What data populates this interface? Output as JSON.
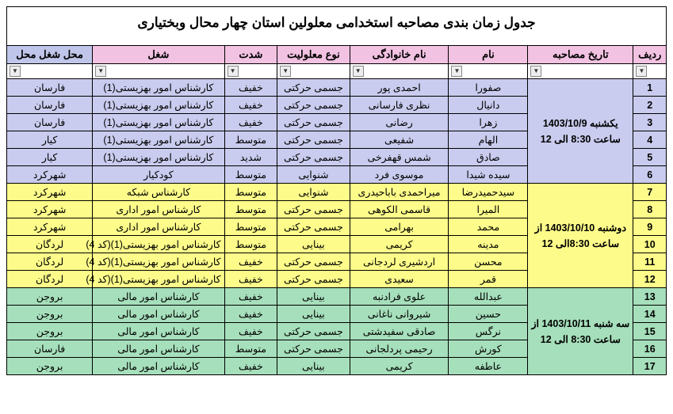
{
  "title": "جدول زمان بندی مصاحبه استخدامی معلولین  استان چهار محال وبختیاری",
  "headers": {
    "row": "ردیف",
    "date": "تاریخ مصاحبه",
    "name": "نام",
    "family": "نام خانوادگی",
    "type": "نوع معلولیت",
    "severity": "شدت",
    "job": "شغل",
    "location": "محل شغل محل"
  },
  "colors": {
    "hdr_pink": "#f2c2e2",
    "hdr_blue": "#c0c6ea",
    "grp_blue": "#c9ccee",
    "grp_yellow": "#fdfc8a",
    "grp_green": "#a6dfbb",
    "border": "#000000"
  },
  "groups": [
    {
      "cls": "grp-blue",
      "date": "یکشنبه 1403/10/9 ساعت 8:30 الی 12",
      "rows": [
        {
          "n": "1",
          "name": "صفورا",
          "family": "احمدی پور",
          "type": "جسمی حرکتی",
          "sev": "خفیف",
          "job": "کارشناس امور بهزیستی(1)",
          "loc": "فارسان"
        },
        {
          "n": "2",
          "name": "دانیال",
          "family": "نظری فارسانی",
          "type": "جسمی حرکتی",
          "sev": "خفیف",
          "job": "کارشناس امور بهزیستی(1)",
          "loc": "فارسان"
        },
        {
          "n": "3",
          "name": "زهرا",
          "family": "رضانی",
          "type": "جسمی حرکتی",
          "sev": "خفیف",
          "job": "کارشناس امور بهزیستی(1)",
          "loc": "فارسان"
        },
        {
          "n": "4",
          "name": "الهام",
          "family": "شفیعی",
          "type": "جسمی حرکتی",
          "sev": "متوسط",
          "job": "کارشناس امور بهزیستی(1)",
          "loc": "کیار"
        },
        {
          "n": "5",
          "name": "صادق",
          "family": "شمس قهفرخی",
          "type": "جسمی حرکتی",
          "sev": "شدید",
          "job": "کارشناس امور بهزیستی(1)",
          "loc": "کیار"
        },
        {
          "n": "6",
          "name": "سیده شیدا",
          "family": "موسوی فرد",
          "type": "شنوایی",
          "sev": "متوسط",
          "job": "کودکیار",
          "loc": "شهرکرد"
        }
      ]
    },
    {
      "cls": "grp-yellow",
      "date": "دوشنبه 1403/10/10 از ساعت 8:30الی 12",
      "rows": [
        {
          "n": "7",
          "name": "سیدحمیدرضا",
          "family": "میراحمدی باباحیدری",
          "type": "شنوایی",
          "sev": "متوسط",
          "job": "کارشناس شبکه",
          "loc": "شهرکرد"
        },
        {
          "n": "8",
          "name": "المیرا",
          "family": "قاسمی الکوهی",
          "type": "جسمی حرکتی",
          "sev": "متوسط",
          "job": "کارشناس امور اداری",
          "loc": "شهرکرد"
        },
        {
          "n": "9",
          "name": "محمد",
          "family": "بهرامی",
          "type": "جسمی حرکتی",
          "sev": "متوسط",
          "job": "کارشناس امور اداری",
          "loc": "شهرکرد"
        },
        {
          "n": "10",
          "name": "مدینه",
          "family": "کریمی",
          "type": "بینایی",
          "sev": "متوسط",
          "job": "کارشناس امور بهزیستی(1)(کد 4)",
          "loc": "لردگان"
        },
        {
          "n": "11",
          "name": "محسن",
          "family": "اردشیری لردجانی",
          "type": "جسمی حرکتی",
          "sev": "خفیف",
          "job": "کارشناس امور بهزیستی(1)(کد 4)",
          "loc": "لردگان"
        },
        {
          "n": "12",
          "name": "قمر",
          "family": "سعیدی",
          "type": "جسمی حرکتی",
          "sev": "خفیف",
          "job": "کارشناس امور بهزیستی(1)(کد 4)",
          "loc": "لردگان"
        }
      ]
    },
    {
      "cls": "grp-green",
      "date": "سه شنبه 1403/10/11 از ساعت 8:30 الی 12",
      "rows": [
        {
          "n": "13",
          "name": "عبدالله",
          "family": "علوی فرادنبه",
          "type": "بینایی",
          "sev": "خفیف",
          "job": "کارشناس امور مالی",
          "loc": "بروجن"
        },
        {
          "n": "14",
          "name": "حسین",
          "family": "شیروانی ناغانی",
          "type": "بینایی",
          "sev": "خفیف",
          "job": "کارشناس امور مالی",
          "loc": "بروجن"
        },
        {
          "n": "15",
          "name": "نرگس",
          "family": "صادقی سفیدشتی",
          "type": "جسمی حرکتی",
          "sev": "خفیف",
          "job": "کارشناس امور مالی",
          "loc": "بروجن"
        },
        {
          "n": "16",
          "name": "کورش",
          "family": "رحیمی پردلجانی",
          "type": "جسمی حرکتی",
          "sev": "متوسط",
          "job": "کارشناس امور مالی",
          "loc": "فارسان"
        },
        {
          "n": "17",
          "name": "عاطفه",
          "family": "کریمی",
          "type": "بینایی",
          "sev": "خفیف",
          "job": "کارشناس امور مالی",
          "loc": "بروجن"
        }
      ]
    }
  ]
}
